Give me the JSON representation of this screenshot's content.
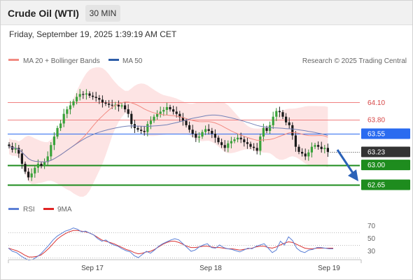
{
  "header": {
    "title": "Crude Oil (WTI)",
    "timeframe": "30 MIN"
  },
  "datetime": "Friday, September 19, 2025 1:39:19 AM CET",
  "legend": {
    "items": [
      {
        "label": "MA 20 + Bollinger Bands",
        "color": "#f28b82"
      },
      {
        "label": "MA 50",
        "color": "#2e5ea8"
      }
    ],
    "credit": "Research © 2025 Trading Central"
  },
  "rsi_legend": {
    "items": [
      {
        "label": "RSI",
        "color": "#5b7fd6"
      },
      {
        "label": "9MA",
        "color": "#e02424"
      }
    ]
  },
  "x_axis": {
    "labels": [
      "Sep 17",
      "Sep 18",
      "Sep 19"
    ]
  },
  "rsi_axis": {
    "labels": [
      "70",
      "50",
      "30"
    ]
  },
  "levels": {
    "r2": {
      "label": "64.10",
      "color": "#f08080"
    },
    "r1": {
      "label": "63.80",
      "color": "#f08080"
    },
    "pivot": {
      "label": "63.55",
      "color": "#2a6bf0"
    },
    "last": {
      "label": "63.23",
      "color": "#333333"
    },
    "s1": {
      "label": "63.00",
      "color": "#1e8c1e"
    },
    "s2": {
      "label": "62.65",
      "color": "#1e8c1e"
    }
  },
  "chart_data": {
    "type": "candlestick",
    "symbol": "Crude Oil (WTI)",
    "interval": "30 MIN",
    "ylim": [
      62.6,
      64.55
    ],
    "key_levels": [
      64.1,
      63.8,
      63.55,
      63.23,
      63.0,
      62.65
    ],
    "closes": [
      63.33,
      63.27,
      63.3,
      63.2,
      63.02,
      62.88,
      62.78,
      62.85,
      62.95,
      63.02,
      62.98,
      63.05,
      63.15,
      63.35,
      63.5,
      63.65,
      63.73,
      63.9,
      63.98,
      64.05,
      64.12,
      64.2,
      64.25,
      64.24,
      64.26,
      64.22,
      64.2,
      64.18,
      64.15,
      64.1,
      64.08,
      64.06,
      64.05,
      64.06,
      64.03,
      64.05,
      63.98,
      63.9,
      63.72,
      63.65,
      63.62,
      63.6,
      63.58,
      63.72,
      63.78,
      63.85,
      63.9,
      63.94,
      63.97,
      64.02,
      63.98,
      63.94,
      63.9,
      63.84,
      63.78,
      63.7,
      63.62,
      63.55,
      63.48,
      63.5,
      63.58,
      63.63,
      63.6,
      63.55,
      63.48,
      63.4,
      63.35,
      63.3,
      63.38,
      63.42,
      63.45,
      63.48,
      63.45,
      63.4,
      63.37,
      63.32,
      63.3,
      63.25,
      63.5,
      63.65,
      63.6,
      63.7,
      63.85,
      63.95,
      63.93,
      63.85,
      63.75,
      63.7,
      63.52,
      63.32,
      63.23,
      63.2,
      63.15,
      63.22,
      63.32,
      63.35,
      63.32,
      63.28,
      63.3,
      63.23
    ],
    "rsi": [
      45,
      40,
      38,
      33,
      29,
      26,
      27,
      31,
      36,
      43,
      50,
      58,
      64,
      68,
      72,
      74,
      77,
      75,
      71,
      72,
      69,
      66,
      60,
      56,
      58,
      53,
      50,
      48,
      44,
      41,
      39,
      33,
      30,
      35,
      40,
      37,
      42,
      48,
      52,
      55,
      58,
      60,
      58,
      52,
      46,
      40,
      42,
      47,
      50,
      52,
      46,
      45,
      50,
      46,
      44,
      43,
      41,
      39,
      42,
      45,
      44,
      48,
      50,
      52,
      45,
      38,
      42,
      56,
      50,
      63,
      57,
      45,
      40,
      38,
      42,
      43,
      46,
      46,
      45,
      44,
      44
    ],
    "rsi_ma": [
      45,
      43,
      41,
      38,
      34,
      31,
      31,
      32,
      34,
      39,
      45,
      52,
      59,
      64,
      68,
      71,
      73,
      73,
      72,
      71,
      69,
      66,
      62,
      58,
      56,
      54,
      52,
      49,
      46,
      43,
      41,
      38,
      36,
      37,
      39,
      40,
      43,
      47,
      51,
      54,
      56,
      56,
      54,
      51,
      48,
      46,
      46,
      47,
      48,
      48,
      47,
      46,
      46,
      45,
      44,
      44,
      43,
      42,
      43,
      44,
      45,
      47,
      48,
      48,
      46,
      45,
      47,
      50,
      53,
      55,
      54,
      51,
      48,
      45,
      44,
      44,
      45,
      45,
      45,
      45,
      45
    ],
    "rsi_levels": [
      70,
      50,
      30
    ]
  }
}
